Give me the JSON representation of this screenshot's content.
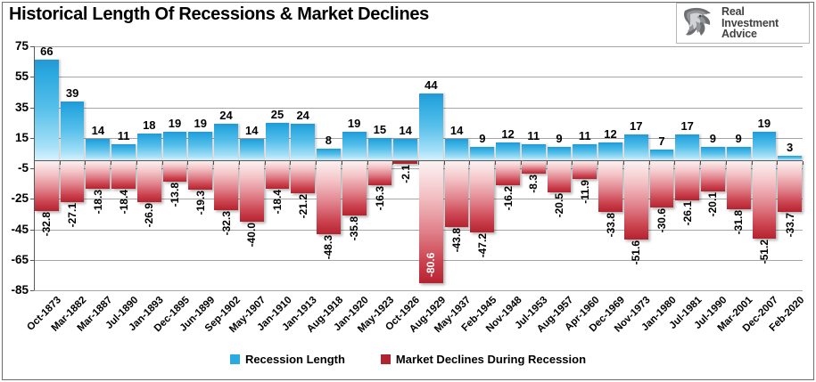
{
  "title": "Historical Length Of Recessions & Market Declines",
  "logo": {
    "line1": "Real",
    "line2": "Investment",
    "line3": "Advice",
    "icon": "eagle-icon"
  },
  "legend": [
    {
      "label": "Recession Length",
      "color": "#29ABE2"
    },
    {
      "label": "Market Declines During Recession",
      "color": "#B1232D"
    }
  ],
  "chart_data": {
    "type": "bar",
    "title": "Historical Length Of Recessions & Market Declines",
    "xlabel": "",
    "ylabel": "",
    "ylim": [
      -85,
      75
    ],
    "yticks": [
      75,
      55,
      35,
      15,
      -5,
      -25,
      -45,
      -65,
      -85
    ],
    "grid": true,
    "legend_position": "bottom",
    "categories": [
      "Oct-1873",
      "Mar-1882",
      "Mar-1887",
      "Jul-1890",
      "Jan-1893",
      "Dec-1895",
      "Jun-1899",
      "Sep-1902",
      "May-1907",
      "Jan-1910",
      "Jan-1913",
      "Aug-1918",
      "Jan-1920",
      "May-1923",
      "Oct-1926",
      "Aug-1929",
      "May-1937",
      "Feb-1945",
      "Nov-1948",
      "Jul-1953",
      "Aug-1957",
      "Apr-1960",
      "Dec-1969",
      "Nov-1973",
      "Jan-1980",
      "Jul-1981",
      "Jul-1990",
      "Mar-2001",
      "Dec-2007",
      "Feb-2020"
    ],
    "series": [
      {
        "name": "Recession Length",
        "color": "#29ABE2",
        "values": [
          66,
          39,
          14,
          11,
          18,
          19,
          19,
          24,
          14,
          25,
          24,
          8,
          19,
          15,
          14,
          44,
          14,
          9,
          12,
          11,
          9,
          11,
          12,
          17,
          7,
          17,
          9,
          9,
          19,
          3
        ]
      },
      {
        "name": "Market Declines During Recession",
        "color": "#B1232D",
        "values": [
          -32.8,
          -27.1,
          -18.3,
          -18.4,
          -26.9,
          -13.8,
          -19.3,
          -32.3,
          -40.0,
          -18.4,
          -21.2,
          -48.3,
          -35.8,
          -16.3,
          -2.1,
          -80.6,
          -43.8,
          -47.2,
          -16.2,
          -8.3,
          -20.5,
          -11.9,
          -33.8,
          -51.6,
          -30.6,
          -26.1,
          -20.1,
          -31.8,
          -51.2,
          -33.7
        ]
      }
    ]
  }
}
